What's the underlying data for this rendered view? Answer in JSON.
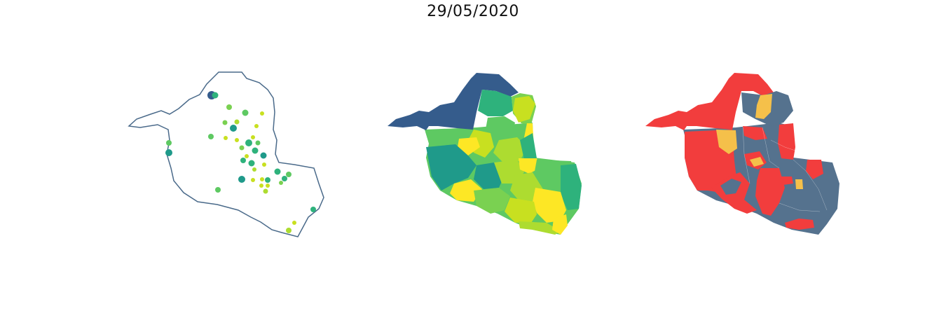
{
  "title": "29/05/2020",
  "colors": {
    "outline": "#4a6a8a",
    "viridis_dark": "#355c8c",
    "viridis_teal": "#1f9a8a",
    "viridis_green": "#2eb27c",
    "viridis_light_green": "#5ec962",
    "viridis_lime": "#addc30",
    "viridis_yellow_green": "#c8e020",
    "viridis_yellow": "#fde725",
    "risk_red": "#f23d3d",
    "risk_orange": "#f5c04a",
    "risk_slate": "#55728e"
  },
  "panels": [
    {
      "name": "bubble-map",
      "kind": "proportional-symbols"
    },
    {
      "name": "choropleth-viridis",
      "kind": "choropleth"
    },
    {
      "name": "risk-classification",
      "kind": "categorical"
    }
  ]
}
